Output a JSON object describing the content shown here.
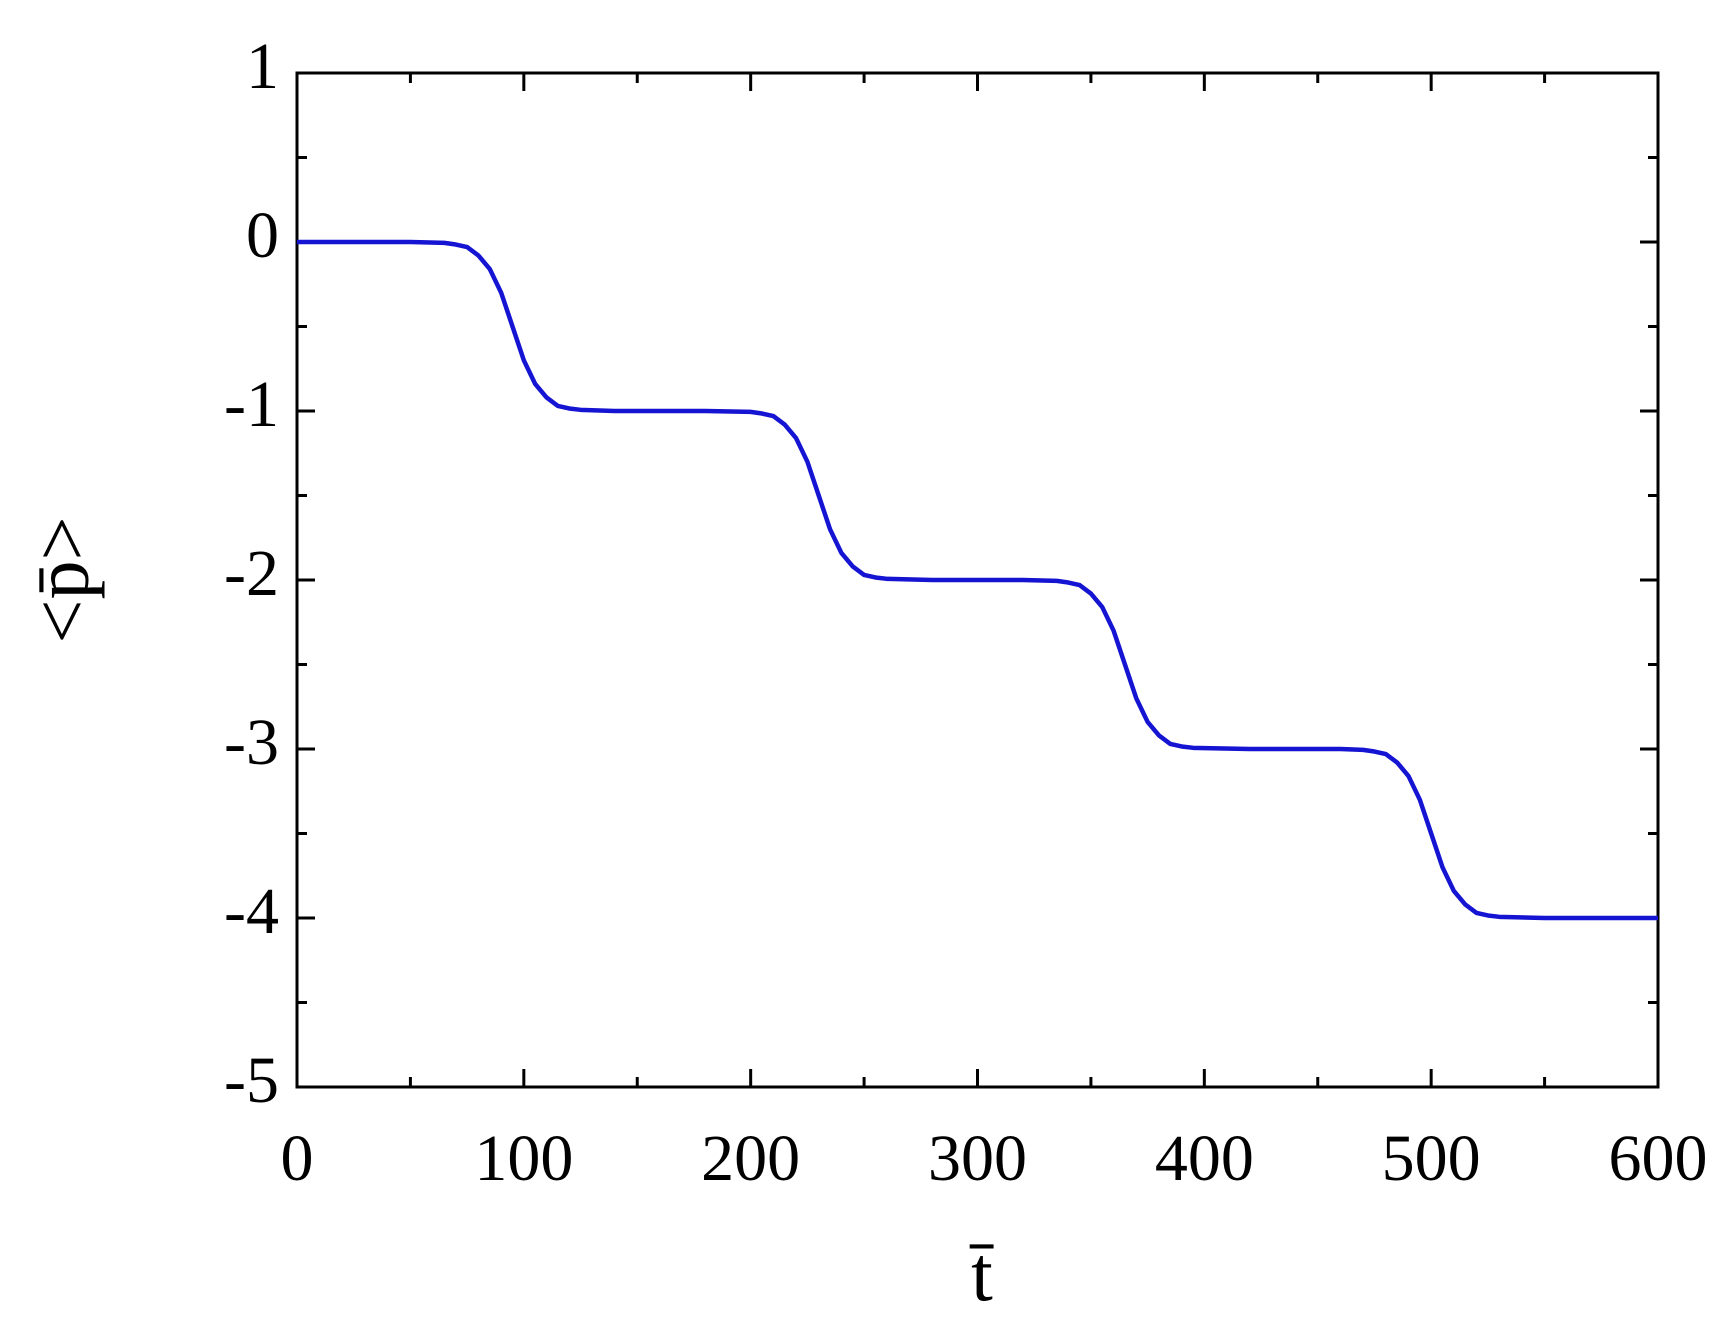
{
  "chart_data": {
    "type": "line",
    "x_label": "t̄",
    "y_label": "<p̄>",
    "x": [
      0,
      50,
      65,
      70,
      75,
      80,
      85,
      90,
      95,
      100,
      105,
      110,
      115,
      120,
      125,
      140,
      180,
      200,
      205,
      210,
      215,
      220,
      225,
      230,
      235,
      240,
      245,
      250,
      255,
      260,
      280,
      320,
      335,
      340,
      345,
      350,
      355,
      360,
      365,
      370,
      375,
      380,
      385,
      390,
      395,
      420,
      460,
      470,
      475,
      480,
      485,
      490,
      495,
      500,
      505,
      510,
      515,
      520,
      525,
      530,
      550,
      600
    ],
    "series": [
      {
        "color": "#1414d2",
        "values": [
          0,
          0,
          -0.005,
          -0.015,
          -0.03,
          -0.08,
          -0.16,
          -0.3,
          -0.5,
          -0.7,
          -0.84,
          -0.92,
          -0.97,
          -0.985,
          -0.993,
          -1,
          -1,
          -1.005,
          -1.015,
          -1.03,
          -1.08,
          -1.16,
          -1.3,
          -1.5,
          -1.7,
          -1.84,
          -1.92,
          -1.97,
          -1.985,
          -1.993,
          -2,
          -2,
          -2.005,
          -2.015,
          -2.03,
          -2.08,
          -2.16,
          -2.3,
          -2.5,
          -2.7,
          -2.84,
          -2.92,
          -2.97,
          -2.985,
          -2.993,
          -3,
          -3,
          -3.005,
          -3.015,
          -3.03,
          -3.08,
          -3.16,
          -3.3,
          -3.5,
          -3.7,
          -3.84,
          -3.92,
          -3.97,
          -3.985,
          -3.993,
          -4,
          -4
        ]
      }
    ],
    "xlim": [
      0,
      600
    ],
    "xticks": [
      0,
      100,
      200,
      300,
      400,
      500,
      600
    ],
    "xminorticks": [
      50,
      150,
      250,
      350,
      450,
      550
    ],
    "ylim": [
      -5,
      1
    ],
    "yticks": [
      -5,
      -4,
      -3,
      -2,
      -1,
      0,
      1
    ],
    "yminorticks": [
      -4.5,
      -3.5,
      -2.5,
      -1.5,
      -0.5,
      0.5
    ],
    "grid": false
  }
}
